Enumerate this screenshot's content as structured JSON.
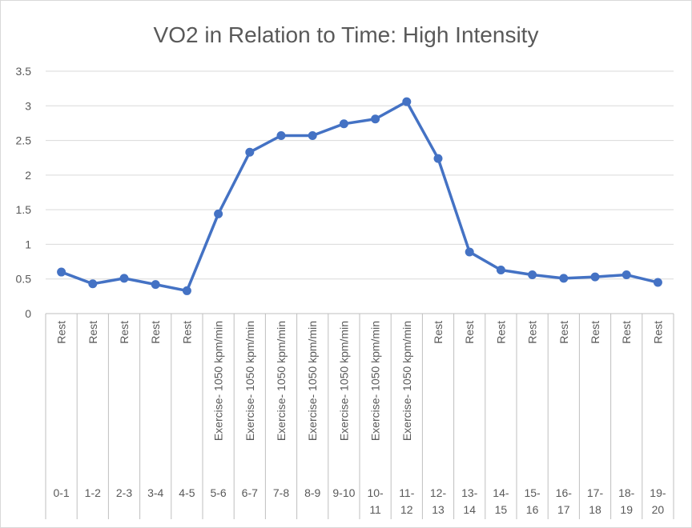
{
  "chart_data": {
    "type": "line",
    "title": "VO2 in Relation to Time: High Intensity",
    "xlabel": "",
    "ylabel": "",
    "ylim": [
      0,
      3.5
    ],
    "yticks": [
      "0",
      "0.5",
      "1",
      "1.5",
      "2",
      "2.5",
      "3",
      "3.5"
    ],
    "grid": true,
    "legend": "none",
    "categories": [
      {
        "time": "0-1",
        "phase": "Rest"
      },
      {
        "time": "1-2",
        "phase": "Rest"
      },
      {
        "time": "2-3",
        "phase": "Rest"
      },
      {
        "time": "3-4",
        "phase": "Rest"
      },
      {
        "time": "4-5",
        "phase": "Rest"
      },
      {
        "time": "5-6",
        "phase": "Exercise- 1050 kpm/min"
      },
      {
        "time": "6-7",
        "phase": "Exercise- 1050 kpm/min"
      },
      {
        "time": "7-8",
        "phase": "Exercise- 1050 kpm/min"
      },
      {
        "time": "8-9",
        "phase": "Exercise- 1050 kpm/min"
      },
      {
        "time": "9-10",
        "phase": "Exercise- 1050 kpm/min"
      },
      {
        "time": "10-11",
        "phase": "Exercise- 1050 kpm/min"
      },
      {
        "time": "11-12",
        "phase": "Exercise- 1050 kpm/min"
      },
      {
        "time": "12-13",
        "phase": "Rest"
      },
      {
        "time": "13-14",
        "phase": "Rest"
      },
      {
        "time": "14-15",
        "phase": "Rest"
      },
      {
        "time": "15-16",
        "phase": "Rest"
      },
      {
        "time": "16-17",
        "phase": "Rest"
      },
      {
        "time": "17-18",
        "phase": "Rest"
      },
      {
        "time": "18-19",
        "phase": "Rest"
      },
      {
        "time": "19-20",
        "phase": "Rest"
      }
    ],
    "series": [
      {
        "name": "VO2",
        "color": "#4472c4",
        "values": [
          0.6,
          0.43,
          0.51,
          0.42,
          0.33,
          1.44,
          2.33,
          2.57,
          2.57,
          2.74,
          2.81,
          3.06,
          2.24,
          0.89,
          0.63,
          0.56,
          0.51,
          0.53,
          0.56,
          0.45
        ]
      }
    ]
  }
}
